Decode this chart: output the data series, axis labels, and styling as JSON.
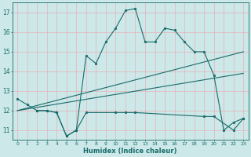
{
  "background_color": "#cce8e8",
  "grid_color": "#e8b0b8",
  "line_color": "#1a6b6b",
  "xlabel": "Humidex (Indice chaleur)",
  "ylim": [
    10.5,
    17.5
  ],
  "xlim": [
    -0.5,
    23.5
  ],
  "yticks": [
    11,
    12,
    13,
    14,
    15,
    16,
    17
  ],
  "xticks": [
    0,
    1,
    2,
    3,
    4,
    5,
    6,
    7,
    8,
    9,
    10,
    11,
    12,
    13,
    14,
    15,
    16,
    17,
    18,
    19,
    20,
    21,
    22,
    23
  ],
  "line1_x": [
    0,
    1,
    2,
    3,
    4,
    5,
    6,
    7,
    8,
    9,
    10,
    11,
    12,
    13,
    14,
    15,
    16,
    17,
    18,
    19,
    20,
    21,
    22,
    23
  ],
  "line1_y": [
    12.6,
    12.3,
    12.0,
    12.0,
    11.9,
    10.7,
    11.0,
    14.8,
    14.4,
    15.5,
    16.2,
    17.1,
    17.2,
    15.5,
    15.5,
    16.2,
    16.1,
    15.5,
    15.0,
    15.0,
    13.8,
    11.0,
    11.4,
    11.6
  ],
  "line2_x": [
    2,
    3,
    4,
    5,
    6,
    7,
    10,
    11,
    12,
    19,
    20,
    22,
    23
  ],
  "line2_y": [
    12.0,
    12.0,
    11.9,
    10.7,
    11.0,
    11.9,
    11.9,
    11.9,
    11.9,
    11.7,
    11.7,
    11.0,
    11.6
  ],
  "line3_x": [
    0,
    23
  ],
  "line3_y": [
    12.0,
    15.0
  ],
  "line4_x": [
    0,
    23
  ],
  "line4_y": [
    12.0,
    13.9
  ]
}
